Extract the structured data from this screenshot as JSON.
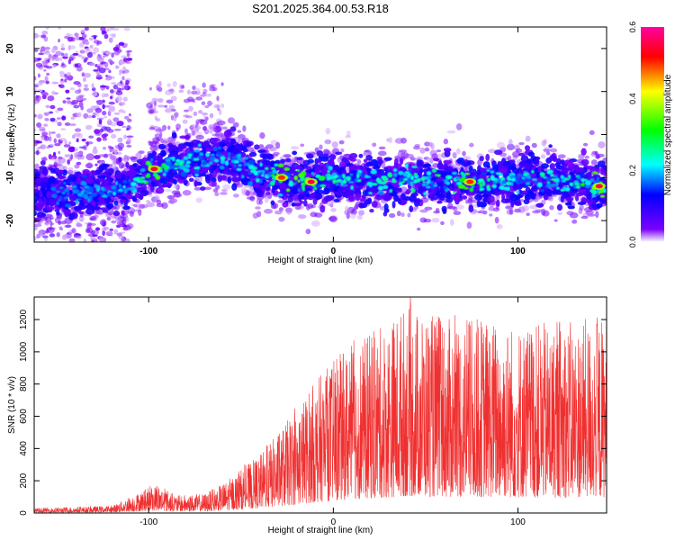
{
  "title": "S201.2025.364.00.53.R18",
  "chart_data": [
    {
      "type": "heatmap",
      "xlabel": "Height of straight line (km)",
      "ylabel": "Frequency (Hz)",
      "xlim": [
        -162,
        148
      ],
      "ylim": [
        -25,
        25
      ],
      "x_ticks": [
        -100,
        0,
        100
      ],
      "y_ticks": [
        -20,
        -10,
        0,
        10,
        20
      ],
      "colorbar": {
        "label": "Normalized spectral amplitude",
        "range": [
          0.0,
          0.6
        ],
        "ticks": [
          "0.0",
          "0.2",
          "0.4",
          "0.6"
        ],
        "colors": [
          "#ffffff",
          "#7a00ff",
          "#0000ff",
          "#00ffff",
          "#00ff00",
          "#ffff00",
          "#ff0000",
          "#ff00a0"
        ]
      },
      "ridge": [
        {
          "x": -160,
          "y": -13,
          "v": 0.15
        },
        {
          "x": -140,
          "y": -14,
          "v": 0.2
        },
        {
          "x": -125,
          "y": -13,
          "v": 0.22
        },
        {
          "x": -110,
          "y": -12,
          "v": 0.3
        },
        {
          "x": -97,
          "y": -8,
          "v": 0.55
        },
        {
          "x": -85,
          "y": -7,
          "v": 0.35
        },
        {
          "x": -70,
          "y": -6,
          "v": 0.3
        },
        {
          "x": -55,
          "y": -5,
          "v": 0.28
        },
        {
          "x": -40,
          "y": -9,
          "v": 0.3
        },
        {
          "x": -28,
          "y": -10,
          "v": 0.5
        },
        {
          "x": -12,
          "y": -11,
          "v": 0.55
        },
        {
          "x": 0,
          "y": -10,
          "v": 0.35
        },
        {
          "x": 20,
          "y": -11,
          "v": 0.3
        },
        {
          "x": 40,
          "y": -10,
          "v": 0.35
        },
        {
          "x": 60,
          "y": -11,
          "v": 0.4
        },
        {
          "x": 74,
          "y": -11,
          "v": 0.5
        },
        {
          "x": 90,
          "y": -11,
          "v": 0.3
        },
        {
          "x": 110,
          "y": -10,
          "v": 0.35
        },
        {
          "x": 128,
          "y": -11,
          "v": 0.35
        },
        {
          "x": 144,
          "y": -12,
          "v": 0.55
        }
      ]
    },
    {
      "type": "line",
      "xlabel": "Height of straight line (km)",
      "ylabel": "SNR (10 * v/v)",
      "xlim": [
        -162,
        148
      ],
      "ylim": [
        0,
        1340
      ],
      "x_ticks": [
        -100,
        0,
        100
      ],
      "y_ticks": [
        0,
        200,
        400,
        600,
        800,
        1000,
        1200
      ],
      "color": "#f03030",
      "envelope": [
        {
          "x": -162,
          "y": 30
        },
        {
          "x": -120,
          "y": 45
        },
        {
          "x": -105,
          "y": 130
        },
        {
          "x": -95,
          "y": 180
        },
        {
          "x": -85,
          "y": 110
        },
        {
          "x": -70,
          "y": 120
        },
        {
          "x": -60,
          "y": 180
        },
        {
          "x": -50,
          "y": 270
        },
        {
          "x": -40,
          "y": 360
        },
        {
          "x": -30,
          "y": 500
        },
        {
          "x": -20,
          "y": 650
        },
        {
          "x": -10,
          "y": 820
        },
        {
          "x": 0,
          "y": 950
        },
        {
          "x": 10,
          "y": 1050
        },
        {
          "x": 25,
          "y": 1150
        },
        {
          "x": 40,
          "y": 1300
        },
        {
          "x": 60,
          "y": 1200
        },
        {
          "x": 80,
          "y": 1220
        },
        {
          "x": 100,
          "y": 1180
        },
        {
          "x": 120,
          "y": 1180
        },
        {
          "x": 148,
          "y": 1220
        }
      ]
    }
  ]
}
